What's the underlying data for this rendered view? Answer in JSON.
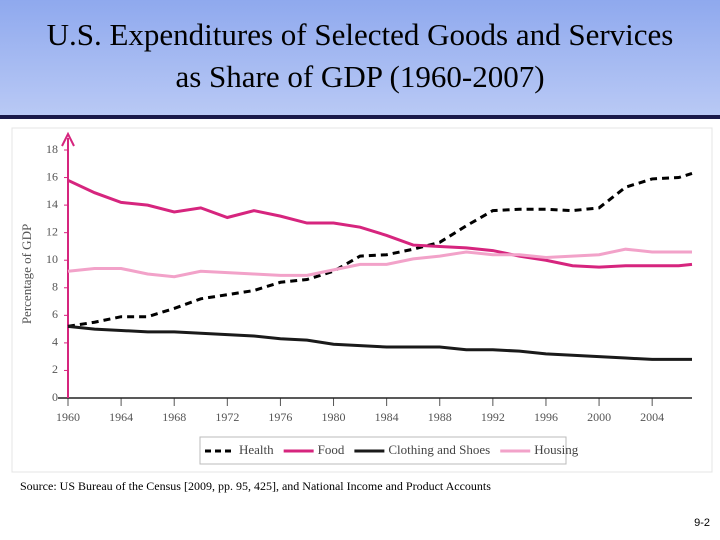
{
  "chart_data": {
    "type": "line",
    "title": "U.S. Expenditures of Selected Goods and Services as Share of GDP (1960-2007)",
    "y_label": "Percentage of GDP",
    "x": [
      1960,
      1962,
      1964,
      1966,
      1968,
      1970,
      1972,
      1974,
      1976,
      1978,
      1980,
      1982,
      1984,
      1986,
      1988,
      1990,
      1992,
      1994,
      1996,
      1998,
      2000,
      2002,
      2004,
      2006,
      2007
    ],
    "series": [
      {
        "name": "Health",
        "color": "#000000",
        "line_style": "dashed",
        "values": [
          5.2,
          5.5,
          5.9,
          5.9,
          6.5,
          7.2,
          7.5,
          7.8,
          8.4,
          8.6,
          9.2,
          10.3,
          10.4,
          10.8,
          11.3,
          12.5,
          13.6,
          13.7,
          13.7,
          13.6,
          13.8,
          15.3,
          15.9,
          16.0,
          16.3
        ]
      },
      {
        "name": "Food",
        "color": "#d6257e",
        "line_style": "solid",
        "values": [
          15.8,
          14.9,
          14.2,
          14.0,
          13.5,
          13.8,
          13.1,
          13.6,
          13.2,
          12.7,
          12.7,
          12.4,
          11.8,
          11.1,
          11.0,
          10.9,
          10.7,
          10.3,
          10.0,
          9.6,
          9.5,
          9.6,
          9.6,
          9.6,
          9.7
        ]
      },
      {
        "name": "Clothing and Shoes",
        "color": "#1a1a1a",
        "line_style": "solid",
        "values": [
          5.2,
          5.0,
          4.9,
          4.8,
          4.8,
          4.7,
          4.6,
          4.5,
          4.3,
          4.2,
          3.9,
          3.8,
          3.7,
          3.7,
          3.7,
          3.5,
          3.5,
          3.4,
          3.2,
          3.1,
          3.0,
          2.9,
          2.8,
          2.8,
          2.8
        ]
      },
      {
        "name": "Housing",
        "color": "#f2a2c9",
        "line_style": "solid",
        "values": [
          9.2,
          9.4,
          9.4,
          9.0,
          8.8,
          9.2,
          9.1,
          9.0,
          8.9,
          8.9,
          9.3,
          9.7,
          9.7,
          10.1,
          10.3,
          10.6,
          10.4,
          10.4,
          10.2,
          10.3,
          10.4,
          10.8,
          10.6,
          10.6,
          10.6
        ]
      }
    ],
    "xlim": [
      1960,
      2007
    ],
    "xticks": [
      1960,
      1964,
      1968,
      1972,
      1976,
      1980,
      1984,
      1988,
      1992,
      1996,
      2000,
      2004
    ],
    "ylim": [
      0,
      18
    ],
    "yticks": [
      0,
      2,
      4,
      6,
      8,
      10,
      12,
      14,
      16,
      18
    ],
    "legend_position": "bottom"
  },
  "source": "Source:  US Bureau of the Census [2009, pp. 95, 425], and National Income and Product Accounts",
  "page_number": "9-2"
}
